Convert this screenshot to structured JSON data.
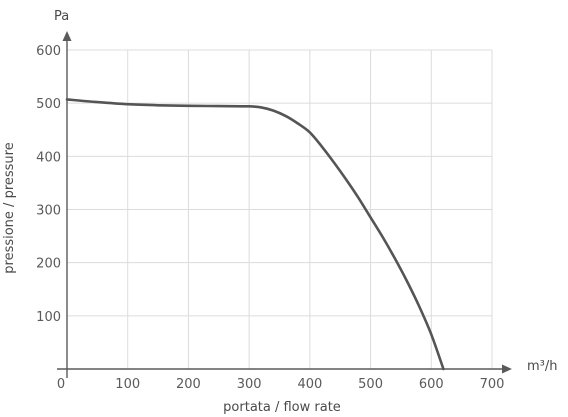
{
  "chart_data": {
    "type": "line",
    "xlabel": "portata / flow rate",
    "ylabel": "pressione / pressure",
    "x_unit": "m³/h",
    "y_unit": "Pa",
    "xlim": [
      0,
      700
    ],
    "ylim": [
      0,
      600
    ],
    "x_ticks": [
      0,
      100,
      200,
      300,
      400,
      500,
      600,
      700
    ],
    "y_ticks": [
      100,
      200,
      300,
      400,
      500,
      600
    ],
    "grid": true,
    "series": [
      {
        "color": "#555555",
        "points": [
          [
            0,
            507
          ],
          [
            50,
            502
          ],
          [
            100,
            498
          ],
          [
            150,
            496
          ],
          [
            200,
            495
          ],
          [
            250,
            494.5
          ],
          [
            300,
            494
          ],
          [
            320,
            492
          ],
          [
            340,
            486
          ],
          [
            360,
            476
          ],
          [
            380,
            462
          ],
          [
            400,
            445
          ],
          [
            420,
            418
          ],
          [
            440,
            388
          ],
          [
            460,
            356
          ],
          [
            480,
            322
          ],
          [
            500,
            285
          ],
          [
            520,
            248
          ],
          [
            540,
            208
          ],
          [
            560,
            165
          ],
          [
            580,
            118
          ],
          [
            600,
            65
          ],
          [
            620,
            0
          ]
        ]
      }
    ]
  }
}
